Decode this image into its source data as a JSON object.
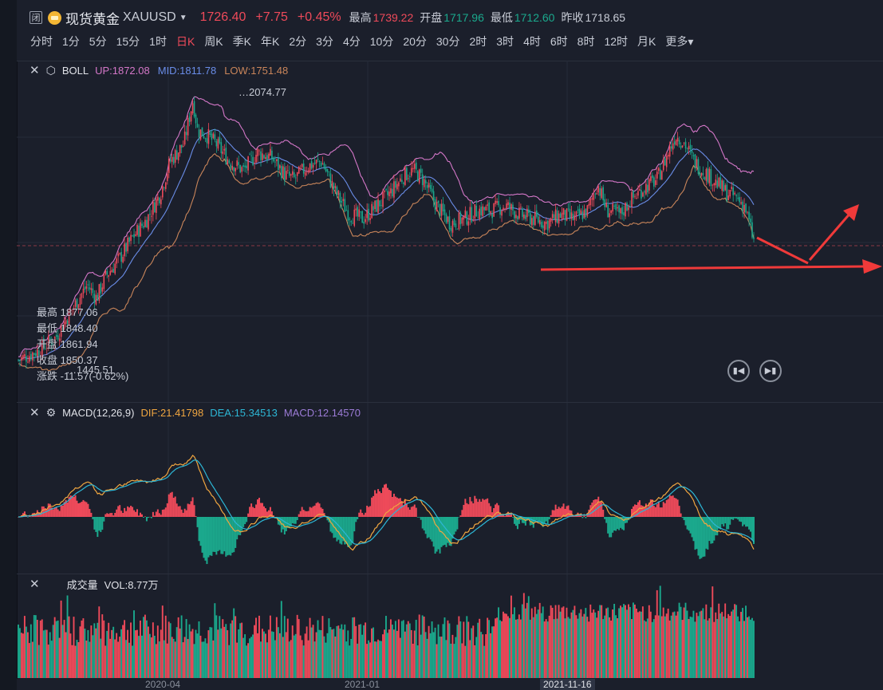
{
  "header": {
    "shut_badge": "闭",
    "name": "现货黄金",
    "code": "XAUUSD",
    "price": "1726.40",
    "change": "+7.75",
    "change_pct": "+0.45%",
    "high_label": "最高",
    "high": "1739.22",
    "open_label": "开盘",
    "open": "1717.96",
    "low_label": "最低",
    "low": "1712.60",
    "prev_label": "昨收",
    "prev": "1718.65"
  },
  "periods": [
    "分时",
    "1分",
    "5分",
    "15分",
    "1时",
    "日K",
    "周K",
    "季K",
    "年K",
    "2分",
    "3分",
    "4分",
    "10分",
    "20分",
    "30分",
    "2时",
    "3时",
    "4时",
    "6时",
    "8时",
    "12时",
    "月K",
    "更多"
  ],
  "active_period": "日K",
  "boll": {
    "name": "BOLL",
    "up": "UP:1872.08",
    "mid": "MID:1811.78",
    "low": "LOW:1751.48",
    "peak_label": "2074.77",
    "trough_label": "1445.51"
  },
  "info": {
    "high": "最高 1877.06",
    "low": "最低 1848.40",
    "open": "开盘 1861.94",
    "close": "收盘 1850.37",
    "change": "涨跌 -11.57(-0.62%)"
  },
  "macd": {
    "name": "MACD(12,26,9)",
    "dif": "DIF:21.41798",
    "dea": "DEA:15.34513",
    "macd": "MACD:12.14570"
  },
  "volume": {
    "name": "成交量",
    "vol": "VOL:8.77万"
  },
  "xaxis": {
    "labels": [
      "2020-04",
      "2021-01"
    ],
    "crosshair": "2021-11-16"
  },
  "nav": {
    "prev_icon": "skip-back-icon",
    "next_icon": "skip-forward-icon"
  },
  "colors": {
    "up": "#ef4a5a",
    "down": "#1ba98d",
    "boll_up": "#d477c8",
    "boll_mid": "#6a8de8",
    "boll_low": "#c9855a",
    "dif": "#f0a640",
    "dea": "#2db7d6"
  },
  "chart_data": [
    {
      "type": "candlestick",
      "title": "BOLL",
      "y_labels": {
        "peak": 2074.77,
        "trough": 1445.51
      },
      "close_path": [
        [
          0,
          1470
        ],
        [
          20,
          1490
        ],
        [
          40,
          1520
        ],
        [
          60,
          1590
        ],
        [
          75,
          1640
        ],
        [
          85,
          1610
        ],
        [
          95,
          1660
        ],
        [
          110,
          1700
        ],
        [
          125,
          1750
        ],
        [
          140,
          1790
        ],
        [
          155,
          1850
        ],
        [
          165,
          1920
        ],
        [
          180,
          1960
        ],
        [
          190,
          2060
        ],
        [
          195,
          1990
        ],
        [
          205,
          1980
        ],
        [
          215,
          1960
        ],
        [
          230,
          1920
        ],
        [
          245,
          1900
        ],
        [
          260,
          1940
        ],
        [
          275,
          1930
        ],
        [
          290,
          1890
        ],
        [
          300,
          1880
        ],
        [
          315,
          1910
        ],
        [
          330,
          1920
        ],
        [
          345,
          1850
        ],
        [
          360,
          1800
        ],
        [
          375,
          1790
        ],
        [
          390,
          1820
        ],
        [
          405,
          1850
        ],
        [
          420,
          1890
        ],
        [
          430,
          1900
        ],
        [
          440,
          1880
        ],
        [
          455,
          1820
        ],
        [
          470,
          1780
        ],
        [
          485,
          1790
        ],
        [
          500,
          1810
        ],
        [
          515,
          1810
        ],
        [
          530,
          1820
        ],
        [
          545,
          1800
        ],
        [
          560,
          1790
        ],
        [
          575,
          1780
        ],
        [
          590,
          1800
        ],
        [
          605,
          1790
        ],
        [
          620,
          1810
        ],
        [
          630,
          1870
        ],
        [
          640,
          1810
        ],
        [
          655,
          1800
        ],
        [
          665,
          1830
        ],
        [
          680,
          1860
        ],
        [
          695,
          1880
        ],
        [
          705,
          1930
        ],
        [
          715,
          1980
        ],
        [
          725,
          1960
        ],
        [
          735,
          1920
        ],
        [
          745,
          1900
        ],
        [
          760,
          1870
        ],
        [
          770,
          1850
        ],
        [
          780,
          1840
        ],
        [
          790,
          1820
        ],
        [
          800,
          1740
        ]
      ]
    },
    {
      "type": "bar",
      "title": "MACD(12,26,9)",
      "series": [
        {
          "name": "DIF",
          "value": 21.41798
        },
        {
          "name": "DEA",
          "value": 15.34513
        },
        {
          "name": "MACD",
          "value": 12.1457
        }
      ]
    },
    {
      "type": "bar",
      "title": "成交量",
      "series": [
        {
          "name": "VOL",
          "value": "8.77万"
        }
      ]
    }
  ]
}
